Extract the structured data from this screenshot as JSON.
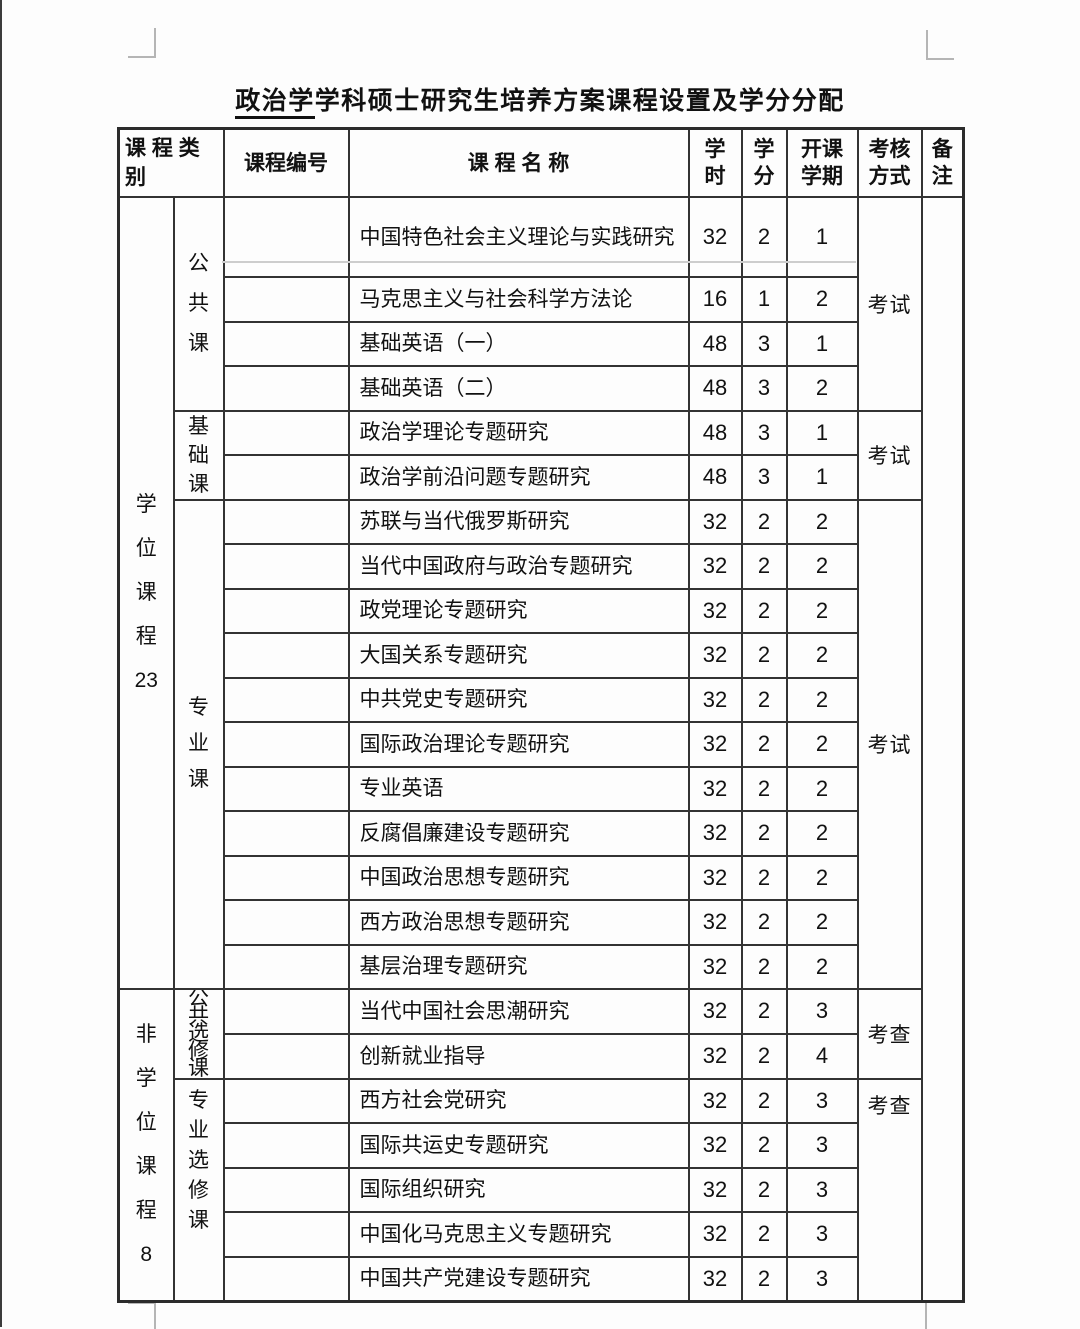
{
  "page_title": {
    "underlined": "政治学",
    "rest": "学科硕士研究生培养方案课程设置及学分分配"
  },
  "table": {
    "headers": {
      "category": "课 程 类 别",
      "course_number": "课程编号",
      "course_name": "课 程 名 称",
      "hours": "学时",
      "credits": "学分",
      "semester": "开课学期",
      "assessment": "考核方式",
      "remarks": "备注"
    },
    "groups": [
      {
        "category": "学位课程23",
        "subgroups": [
          {
            "name": "公共课",
            "assessment": "考试",
            "courses": [
              {
                "name": "中国特色社会主义理论与实践研究",
                "hours": "32",
                "credits": "2",
                "semester": "1"
              },
              {
                "name": "马克思主义与社会科学方法论",
                "hours": "16",
                "credits": "1",
                "semester": "2"
              },
              {
                "name": "基础英语（一）",
                "hours": "48",
                "credits": "3",
                "semester": "1"
              },
              {
                "name": "基础英语（二）",
                "hours": "48",
                "credits": "3",
                "semester": "2"
              }
            ]
          },
          {
            "name": "基础课",
            "assessment": "考试",
            "courses": [
              {
                "name": "政治学理论专题研究",
                "hours": "48",
                "credits": "3",
                "semester": "1"
              },
              {
                "name": "政治学前沿问题专题研究",
                "hours": "48",
                "credits": "3",
                "semester": "1"
              }
            ]
          },
          {
            "name": "专业课",
            "assessment": "考试",
            "courses": [
              {
                "name": "苏联与当代俄罗斯研究",
                "hours": "32",
                "credits": "2",
                "semester": "2"
              },
              {
                "name": "当代中国政府与政治专题研究",
                "hours": "32",
                "credits": "2",
                "semester": "2"
              },
              {
                "name": "政党理论专题研究",
                "hours": "32",
                "credits": "2",
                "semester": "2"
              },
              {
                "name": "大国关系专题研究",
                "hours": "32",
                "credits": "2",
                "semester": "2"
              },
              {
                "name": "中共党史专题研究",
                "hours": "32",
                "credits": "2",
                "semester": "2"
              },
              {
                "name": "国际政治理论专题研究",
                "hours": "32",
                "credits": "2",
                "semester": "2"
              },
              {
                "name": "专业英语",
                "hours": "32",
                "credits": "2",
                "semester": "2"
              },
              {
                "name": "反腐倡廉建设专题研究",
                "hours": "32",
                "credits": "2",
                "semester": "2"
              },
              {
                "name": "中国政治思想专题研究",
                "hours": "32",
                "credits": "2",
                "semester": "2"
              },
              {
                "name": "西方政治思想专题研究",
                "hours": "32",
                "credits": "2",
                "semester": "2"
              },
              {
                "name": "基层治理专题研究",
                "hours": "32",
                "credits": "2",
                "semester": "2"
              }
            ]
          }
        ]
      },
      {
        "category": "非学位课程8",
        "subgroups": [
          {
            "name": "公共选修课",
            "assessment": "考查",
            "courses": [
              {
                "name": "当代中国社会思潮研究",
                "hours": "32",
                "credits": "2",
                "semester": "3"
              },
              {
                "name": "创新就业指导",
                "hours": "32",
                "credits": "2",
                "semester": "4"
              }
            ]
          },
          {
            "name": "专业选修课",
            "assessment": "考查",
            "assessment_top": true,
            "courses": [
              {
                "name": "西方社会党研究",
                "hours": "32",
                "credits": "2",
                "semester": "3"
              },
              {
                "name": "国际共运史专题研究",
                "hours": "32",
                "credits": "2",
                "semester": "3"
              },
              {
                "name": "国际组织研究",
                "hours": "32",
                "credits": "2",
                "semester": "3"
              },
              {
                "name": "中国化马克思主义专题研究",
                "hours": "32",
                "credits": "2",
                "semester": "3"
              },
              {
                "name": "中国共产党建设专题研究",
                "hours": "32",
                "credits": "2",
                "semester": "3"
              }
            ]
          }
        ]
      }
    ]
  }
}
